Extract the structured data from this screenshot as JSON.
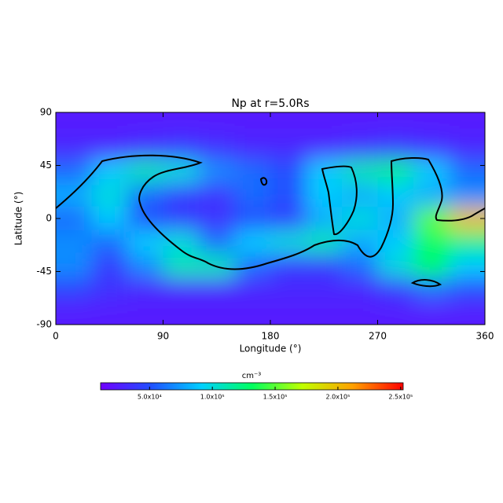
{
  "chart_data": {
    "type": "heatmap",
    "title": "Np at r=5.0Rs",
    "x_label": "Longitude (°)",
    "y_label": "Latitude (°)",
    "xlim": [
      0,
      360
    ],
    "xticks": [
      0,
      90,
      180,
      270,
      360
    ],
    "ylim": [
      -90,
      90
    ],
    "yticks": [
      -90,
      -45,
      0,
      45,
      90
    ],
    "z": [
      [
        25000,
        25000,
        25000,
        25000,
        25000,
        25000,
        25000,
        25000,
        25000,
        25000,
        25000,
        25000
      ],
      [
        30000,
        30000,
        35000,
        40000,
        35000,
        30000,
        30000,
        30000,
        35000,
        40000,
        35000,
        30000
      ],
      [
        60000,
        90000,
        110000,
        100000,
        70000,
        60000,
        50000,
        90000,
        110000,
        120000,
        90000,
        60000
      ],
      [
        80000,
        100000,
        60000,
        40000,
        35000,
        60000,
        50000,
        90000,
        80000,
        90000,
        80000,
        70000
      ],
      [
        60000,
        90000,
        50000,
        40000,
        35000,
        50000,
        40000,
        80000,
        100000,
        80000,
        150000,
        200000
      ],
      [
        70000,
        60000,
        90000,
        100000,
        60000,
        90000,
        100000,
        110000,
        80000,
        90000,
        130000,
        120000
      ],
      [
        70000,
        40000,
        70000,
        110000,
        110000,
        60000,
        40000,
        40000,
        60000,
        100000,
        130000,
        90000
      ],
      [
        45000,
        35000,
        30000,
        30000,
        30000,
        30000,
        30000,
        30000,
        30000,
        40000,
        60000,
        50000
      ],
      [
        25000,
        25000,
        25000,
        25000,
        25000,
        25000,
        25000,
        25000,
        25000,
        25000,
        25000,
        25000
      ]
    ],
    "colorbar_label": "cm⁻³",
    "clim": [
      11000,
      252000
    ],
    "colormap": [
      "#7000ff",
      "#2050ff",
      "#00d0ff",
      "#00ff60",
      "#c0ff00",
      "#ffa000",
      "#ff0000"
    ],
    "cticks": [
      {
        "value": 50000,
        "label": "5.0x10⁴"
      },
      {
        "value": 100000,
        "label": "1.0x10⁵"
      },
      {
        "value": 150000,
        "label": "1.5x10⁵"
      },
      {
        "value": 200000,
        "label": "2.0x10⁵"
      },
      {
        "value": 250000,
        "label": "2.5x10⁵"
      }
    ]
  }
}
